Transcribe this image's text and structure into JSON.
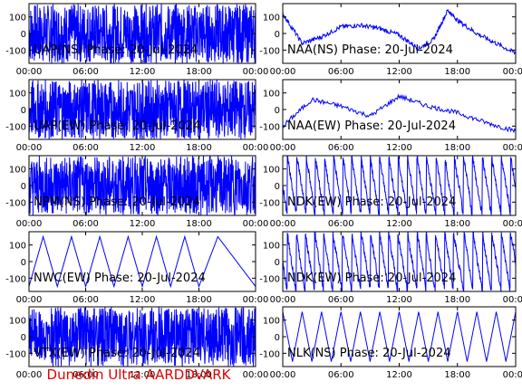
{
  "chart_data": [
    {
      "type": "line",
      "title": "UAP(NS) Phase: 20-Jul-2024",
      "yticks": [
        "100",
        "0",
        "-100"
      ],
      "ylim": [
        -180,
        180
      ],
      "xticks": [
        "00:00",
        "06:00",
        "12:00",
        "18:00",
        "00:00"
      ],
      "xlim": [
        0,
        24
      ],
      "pattern": "noise_full",
      "series": [
        {
          "color": "#0000ff",
          "x": [
            0,
            2,
            3.5,
            6,
            12,
            18,
            24
          ],
          "y": [
            0,
            0,
            0,
            0,
            0,
            0,
            0
          ]
        }
      ]
    },
    {
      "type": "line",
      "title": "NAA(NS) Phase: 20-Jul-2024",
      "yticks": [
        "100",
        "0",
        "-100"
      ],
      "ylim": [
        -180,
        180
      ],
      "xticks": [
        "00:00",
        "06:00",
        "12:00",
        "18:00",
        "00:00"
      ],
      "xlim": [
        0,
        24
      ],
      "pattern": "wave",
      "series": [
        {
          "color": "#0000ff",
          "x": [
            0,
            2,
            4,
            6,
            8,
            10,
            12,
            14,
            15.5,
            17,
            18,
            20,
            22,
            24
          ],
          "y": [
            120,
            -60,
            -20,
            40,
            50,
            30,
            -10,
            -90,
            -40,
            140,
            80,
            0,
            -60,
            -120
          ]
        }
      ]
    },
    {
      "type": "line",
      "title": "UAP(EW) Phase: 20-Jul-2024",
      "yticks": [
        "100",
        "0",
        "-100"
      ],
      "ylim": [
        -180,
        180
      ],
      "xticks": [
        "00:00",
        "06:00",
        "12:00",
        "18:00",
        "00:00"
      ],
      "xlim": [
        0,
        24
      ],
      "pattern": "noise_full",
      "series": [
        {
          "color": "#0000ff",
          "x": [
            0,
            6,
            12,
            18,
            24
          ],
          "y": [
            0,
            0,
            0,
            0,
            0
          ]
        }
      ]
    },
    {
      "type": "line",
      "title": "NAA(EW) Phase: 20-Jul-2024",
      "yticks": [
        "100",
        "0",
        "-100"
      ],
      "ylim": [
        -180,
        180
      ],
      "xticks": [
        "00:00",
        "06:00",
        "12:00",
        "18:00",
        "00:00"
      ],
      "xlim": [
        0,
        24
      ],
      "pattern": "decay",
      "series": [
        {
          "color": "#0000ff",
          "x": [
            0,
            3,
            6,
            9,
            12,
            15,
            18,
            21,
            24
          ],
          "y": [
            -100,
            60,
            20,
            -40,
            80,
            20,
            -20,
            -80,
            -130
          ]
        }
      ]
    },
    {
      "type": "line",
      "title": "NPM(NS) Phase: 20-Jul-2024",
      "yticks": [
        "100",
        "0",
        "-100"
      ],
      "ylim": [
        -180,
        180
      ],
      "xticks": [
        "00:00",
        "06:00",
        "12:00",
        "18:00",
        "00:00"
      ],
      "xlim": [
        0,
        24
      ],
      "pattern": "noise_full",
      "series": [
        {
          "color": "#0000ff",
          "x": [
            0,
            6,
            12,
            18,
            24
          ],
          "y": [
            0,
            0,
            0,
            0,
            0
          ]
        }
      ]
    },
    {
      "type": "line",
      "title": "NDK(EW) Phase: 20-Jul-2024",
      "yticks": [
        "100",
        "0",
        "-100"
      ],
      "ylim": [
        -180,
        180
      ],
      "xticks": [
        "00:00",
        "06:00",
        "12:00",
        "18:00",
        "00:00"
      ],
      "xlim": [
        0,
        24
      ],
      "pattern": "wraps_fast",
      "series": [
        {
          "color": "#0000ff",
          "x": [
            0,
            6,
            12,
            18,
            24
          ],
          "y": [
            0,
            0,
            0,
            0,
            0
          ]
        }
      ]
    },
    {
      "type": "line",
      "title": "NWC(EW) Phase: 20-Jul-2024",
      "yticks": [
        "100",
        "0",
        "-100"
      ],
      "ylim": [
        -180,
        180
      ],
      "xticks": [
        "00:00",
        "06:00",
        "12:00",
        "18:00",
        "00:00"
      ],
      "xlim": [
        0,
        24
      ],
      "pattern": "sawtooth",
      "series": [
        {
          "color": "#0000ff",
          "x": [
            0,
            1.5,
            3,
            4.5,
            6,
            7.5,
            9,
            10.5,
            12,
            13.5,
            15,
            16.5,
            18,
            20,
            22,
            24
          ],
          "y": [
            -150,
            150,
            -150,
            150,
            -150,
            150,
            -150,
            150,
            -150,
            150,
            -150,
            150,
            -150,
            150,
            0,
            -150
          ]
        }
      ]
    },
    {
      "type": "line",
      "title": "NDK(EW) Phase: 20-Jul-2024",
      "yticks": [
        "100",
        "0",
        "-100"
      ],
      "ylim": [
        -180,
        180
      ],
      "xticks": [
        "00:00",
        "06:00",
        "12:00",
        "18:00",
        "00:00"
      ],
      "xlim": [
        0,
        24
      ],
      "pattern": "wraps_fast",
      "series": [
        {
          "color": "#0000ff",
          "x": [
            0,
            6,
            12,
            18,
            24
          ],
          "y": [
            0,
            0,
            0,
            0,
            0
          ]
        }
      ]
    },
    {
      "type": "line",
      "title": "VTX(EW) Phase: 20-Jul-2024",
      "yticks": [
        "100",
        "0",
        "-100"
      ],
      "ylim": [
        -180,
        180
      ],
      "xticks": [
        "00:00",
        "06:00",
        "12:00",
        "18:00",
        "00:00"
      ],
      "xlim": [
        0,
        24
      ],
      "pattern": "noise_right",
      "series": [
        {
          "color": "#0000ff",
          "x": [
            0,
            6,
            12,
            18,
            24
          ],
          "y": [
            0,
            0,
            0,
            0,
            0
          ]
        }
      ]
    },
    {
      "type": "line",
      "title": "NLK(NS) Phase: 20-Jul-2024",
      "yticks": [
        "100",
        "0",
        "-100"
      ],
      "ylim": [
        -180,
        180
      ],
      "xticks": [
        "00:00",
        "06:00",
        "12:00",
        "18:00",
        "00:00"
      ],
      "xlim": [
        0,
        24
      ],
      "pattern": "sawtooth_fast",
      "series": [
        {
          "color": "#0000ff",
          "x": [
            0,
            1,
            2,
            3,
            4,
            5,
            6,
            7,
            8,
            9,
            10,
            11,
            12,
            13,
            14,
            15,
            16,
            17,
            18,
            19,
            20,
            21,
            22,
            23,
            24
          ],
          "y": [
            150,
            -150,
            150,
            -150,
            150,
            -150,
            150,
            -150,
            150,
            -150,
            150,
            -150,
            150,
            -150,
            150,
            -150,
            150,
            -150,
            150,
            -150,
            150,
            -150,
            150,
            -150,
            150
          ]
        }
      ]
    }
  ],
  "footer": {
    "text": "Dunedin Ultra AARDDVARK"
  }
}
